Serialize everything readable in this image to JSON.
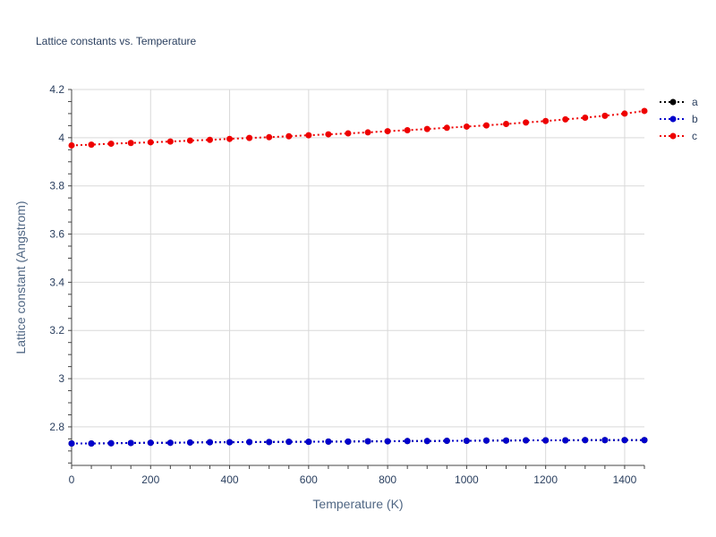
{
  "chart_data": {
    "type": "line",
    "title": "Lattice constants vs. Temperature",
    "xlabel": "Temperature (K)",
    "ylabel": "Lattice constant (Angstrom)",
    "xlim": [
      0,
      1450
    ],
    "ylim": [
      2.64,
      4.2
    ],
    "xticks": [
      0,
      200,
      400,
      600,
      800,
      1000,
      1200,
      1400
    ],
    "xtick_labels": [
      "0",
      "200",
      "400",
      "600",
      "800",
      "1000",
      "1200",
      "1400"
    ],
    "yticks": [
      2.8,
      3,
      3.2,
      3.4,
      3.6,
      3.8,
      4,
      4.2
    ],
    "ytick_labels": [
      "2.8",
      "3",
      "3.2",
      "3.4",
      "3.6",
      "3.8",
      "4",
      "4.2"
    ],
    "grid": true,
    "legend": "top-right",
    "x": [
      0,
      50,
      100,
      150,
      200,
      250,
      300,
      350,
      400,
      450,
      500,
      550,
      600,
      650,
      700,
      750,
      800,
      850,
      900,
      950,
      1000,
      1050,
      1100,
      1150,
      1200,
      1250,
      1300,
      1350,
      1400,
      1450
    ],
    "series": [
      {
        "name": "a",
        "color": "#000000",
        "values": [
          2.731,
          2.731,
          2.732,
          2.733,
          2.734,
          2.734,
          2.735,
          2.736,
          2.736,
          2.737,
          2.737,
          2.738,
          2.738,
          2.739,
          2.739,
          2.74,
          2.74,
          2.741,
          2.741,
          2.742,
          2.742,
          2.743,
          2.743,
          2.744,
          2.744,
          2.744,
          2.745,
          2.745,
          2.745,
          2.745
        ]
      },
      {
        "name": "b",
        "color": "#0000cc",
        "values": [
          2.731,
          2.731,
          2.732,
          2.733,
          2.734,
          2.734,
          2.735,
          2.736,
          2.736,
          2.737,
          2.737,
          2.738,
          2.738,
          2.739,
          2.739,
          2.74,
          2.74,
          2.741,
          2.741,
          2.742,
          2.742,
          2.743,
          2.743,
          2.744,
          2.744,
          2.744,
          2.745,
          2.745,
          2.745,
          2.745
        ]
      },
      {
        "name": "c",
        "color": "#ee0000",
        "values": [
          3.968,
          3.971,
          3.975,
          3.978,
          3.981,
          3.984,
          3.988,
          3.991,
          3.995,
          3.999,
          4.002,
          4.006,
          4.01,
          4.014,
          4.018,
          4.022,
          4.027,
          4.031,
          4.036,
          4.041,
          4.046,
          4.051,
          4.057,
          4.063,
          4.069,
          4.076,
          4.083,
          4.091,
          4.1,
          4.111
        ]
      }
    ]
  }
}
